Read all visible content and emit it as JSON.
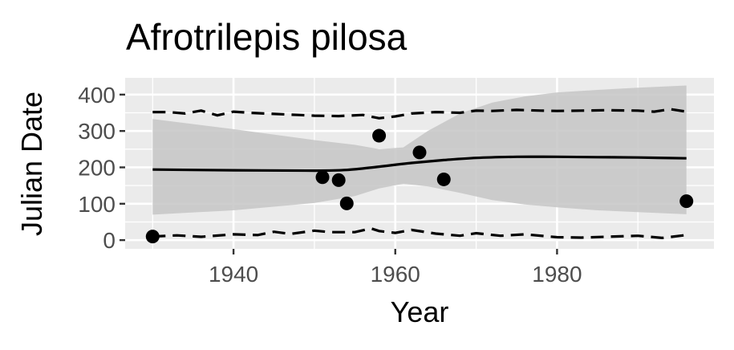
{
  "chart_data": {
    "type": "scatter",
    "title": "Afrotrilepis pilosa",
    "xlabel": "Year",
    "ylabel": "Julian Date",
    "xlim": [
      1926.6,
      1999.4
    ],
    "ylim": [
      -24,
      446
    ],
    "x_ticks": [
      1940,
      1960,
      1980
    ],
    "y_ticks": [
      0,
      100,
      200,
      300,
      400
    ],
    "grid": true,
    "legend": "none",
    "colors": {
      "panel": "#ebebeb",
      "grid": "#ffffff",
      "points": "#000000",
      "ribbon": "#c6c6c6",
      "trend": "#000000"
    },
    "points": [
      {
        "x": 1930,
        "y": 10
      },
      {
        "x": 1951,
        "y": 173
      },
      {
        "x": 1953,
        "y": 165
      },
      {
        "x": 1954,
        "y": 101
      },
      {
        "x": 1958,
        "y": 287
      },
      {
        "x": 1963,
        "y": 241
      },
      {
        "x": 1966,
        "y": 167
      },
      {
        "x": 1996,
        "y": 107
      }
    ],
    "trend": {
      "x": [
        1930,
        1940,
        1950,
        1954,
        1958,
        1962,
        1966,
        1970,
        1975,
        1980,
        1985,
        1990,
        1996
      ],
      "y": [
        194,
        192,
        191,
        193,
        202,
        212,
        220,
        226,
        229,
        229,
        228,
        227,
        225
      ]
    },
    "ribbon": {
      "x": [
        1930,
        1940,
        1950,
        1955,
        1958,
        1961,
        1964,
        1968,
        1972,
        1976,
        1980,
        1985,
        1990,
        1996
      ],
      "upper": [
        333,
        305,
        275,
        262,
        250,
        255,
        300,
        348,
        378,
        395,
        406,
        413,
        419,
        425
      ],
      "lower": [
        70,
        82,
        102,
        121,
        142,
        155,
        148,
        130,
        110,
        98,
        90,
        82,
        77,
        71
      ]
    },
    "upper_band": {
      "x": [
        1930,
        1932,
        1934,
        1936,
        1938,
        1940,
        1942,
        1945,
        1948,
        1950,
        1953,
        1956,
        1958,
        1960,
        1962,
        1965,
        1968,
        1970,
        1972,
        1975,
        1978,
        1980,
        1983,
        1986,
        1990,
        1992,
        1994,
        1996
      ],
      "y": [
        352,
        352,
        348,
        356,
        343,
        353,
        350,
        347,
        344,
        342,
        341,
        344,
        335,
        340,
        348,
        352,
        350,
        356,
        355,
        358,
        356,
        355,
        356,
        357,
        356,
        353,
        360,
        353
      ]
    },
    "lower_band": {
      "x": [
        1930,
        1933,
        1936,
        1940,
        1943,
        1945,
        1947,
        1950,
        1952,
        1955,
        1957,
        1958,
        1960,
        1962,
        1965,
        1968,
        1970,
        1973,
        1976,
        1980,
        1983,
        1986,
        1990,
        1993,
        1996
      ],
      "y": [
        10,
        13,
        9,
        16,
        14,
        23,
        17,
        26,
        22,
        22,
        32,
        25,
        20,
        28,
        18,
        12,
        19,
        12,
        16,
        8,
        7,
        9,
        12,
        6,
        14
      ]
    }
  }
}
